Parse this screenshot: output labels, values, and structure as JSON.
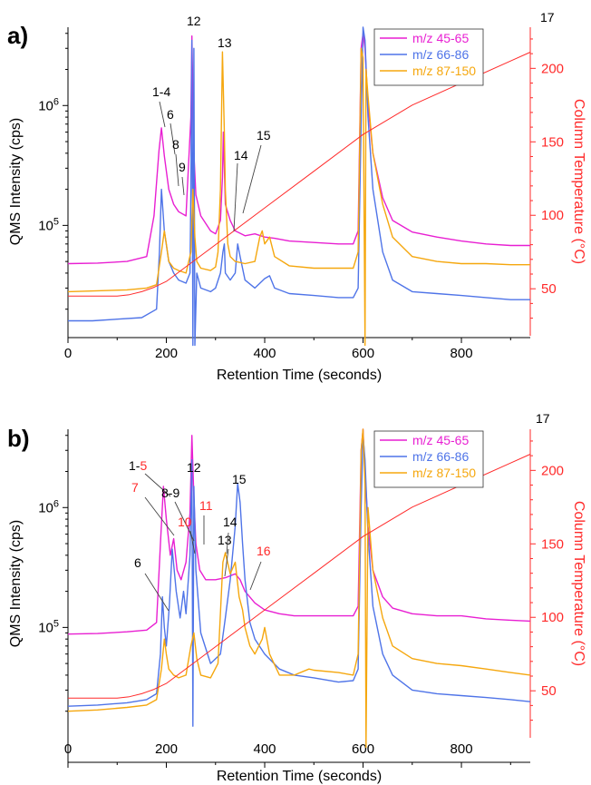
{
  "colors": {
    "magenta": "#e81fd2",
    "blue": "#4f74e8",
    "orange": "#f5a70e",
    "temperature": "#ff2a2a",
    "axis": "#000000",
    "red_label": "#ff2a2a"
  },
  "chart_data": [
    {
      "panel_label": "a)",
      "type": "line",
      "xlabel": "Retention Time (seconds)",
      "ylabel": "QMS Intensity (cps)",
      "y2label": "Column Temperature (°C)",
      "xlim": [
        0,
        940
      ],
      "ylim": [
        12000,
        4500000
      ],
      "yscale": "log",
      "y2lim": [
        18,
        228
      ],
      "xticks": [
        0,
        200,
        400,
        600,
        800
      ],
      "yticks": [
        {
          "value": 100000,
          "label": "10^5"
        },
        {
          "value": 1000000,
          "label": "10^6"
        }
      ],
      "y2ticks": [
        50,
        100,
        150,
        200
      ],
      "legend_position": "top-right",
      "series": [
        {
          "name": "m/z 45-65",
          "color_key": "magenta",
          "x": [
            0,
            60,
            120,
            160,
            175,
            185,
            190,
            196,
            205,
            215,
            225,
            240,
            250,
            252,
            254,
            256,
            260,
            270,
            290,
            300,
            310,
            314,
            316,
            318,
            320,
            330,
            340,
            360,
            380,
            400,
            420,
            450,
            500,
            550,
            580,
            590,
            596,
            600,
            604,
            610,
            620,
            640,
            660,
            700,
            750,
            800,
            850,
            900,
            940
          ],
          "y": [
            48000,
            48500,
            50000,
            55000,
            120000,
            420000,
            650000,
            380000,
            200000,
            150000,
            130000,
            120000,
            800000,
            3800000,
            1200000,
            400000,
            180000,
            120000,
            90000,
            85000,
            110000,
            250000,
            600000,
            300000,
            150000,
            110000,
            90000,
            82000,
            85000,
            80000,
            78000,
            74000,
            72000,
            70000,
            70000,
            90000,
            3000000,
            4000000,
            3000000,
            1000000,
            400000,
            170000,
            110000,
            88000,
            80000,
            74000,
            70000,
            68000,
            68000
          ]
        },
        {
          "name": "m/z 66-86",
          "color_key": "blue",
          "x": [
            0,
            50,
            100,
            150,
            180,
            186,
            190,
            196,
            205,
            210,
            215,
            225,
            240,
            248,
            250,
            252,
            254,
            256,
            258,
            262,
            270,
            290,
            300,
            310,
            315,
            318,
            320,
            330,
            340,
            345,
            350,
            360,
            380,
            400,
            410,
            420,
            450,
            500,
            550,
            580,
            590,
            596,
            600,
            604,
            610,
            620,
            640,
            660,
            700,
            750,
            800,
            850,
            900,
            940
          ],
          "y": [
            16000,
            16000,
            16500,
            17000,
            20000,
            60000,
            200000,
            90000,
            50000,
            45000,
            40000,
            35000,
            33000,
            40000,
            200000,
            3500000,
            10000,
            3000000,
            10000,
            40000,
            30000,
            28000,
            30000,
            40000,
            60000,
            70000,
            40000,
            35000,
            40000,
            70000,
            55000,
            35000,
            30000,
            36000,
            38000,
            30000,
            27000,
            26000,
            25000,
            25000,
            30000,
            700000,
            4500000,
            3500000,
            800000,
            200000,
            60000,
            35000,
            28000,
            27000,
            26000,
            25000,
            24000,
            24000
          ]
        },
        {
          "name": "m/z 87-150",
          "color_key": "orange",
          "x": [
            0,
            60,
            120,
            160,
            180,
            190,
            196,
            200,
            205,
            215,
            225,
            240,
            250,
            254,
            258,
            262,
            270,
            290,
            300,
            305,
            310,
            314,
            318,
            320,
            325,
            330,
            340,
            360,
            380,
            390,
            395,
            400,
            410,
            420,
            450,
            500,
            550,
            580,
            590,
            596,
            600,
            604,
            606,
            610,
            620,
            640,
            660,
            700,
            750,
            800,
            850,
            900,
            940
          ],
          "y": [
            28000,
            28500,
            29000,
            30000,
            32000,
            60000,
            90000,
            70000,
            50000,
            44000,
            42000,
            40000,
            60000,
            200000,
            80000,
            50000,
            44000,
            42000,
            45000,
            60000,
            200000,
            2800000,
            600000,
            200000,
            70000,
            55000,
            50000,
            48000,
            50000,
            80000,
            90000,
            70000,
            80000,
            55000,
            46000,
            44000,
            44000,
            44000,
            60000,
            3000000,
            2500000,
            10000,
            2000000,
            1200000,
            400000,
            150000,
            80000,
            55000,
            50000,
            48000,
            48000,
            47000,
            47000
          ]
        },
        {
          "name": "Column Temperature",
          "axis": "right",
          "color_key": "temperature",
          "x": [
            0,
            100,
            125,
            150,
            175,
            200,
            300,
            400,
            500,
            600,
            700,
            800,
            900,
            940
          ],
          "y": [
            45,
            45,
            46,
            48,
            51,
            55,
            80,
            105,
            130,
            155,
            175,
            190,
            205,
            211
          ]
        }
      ],
      "annotations": [
        {
          "text": "1-4",
          "color_key": "axis"
        },
        {
          "text": "6",
          "color_key": "axis"
        },
        {
          "text": "8",
          "color_key": "axis"
        },
        {
          "text": "9",
          "color_key": "axis"
        },
        {
          "text": "12",
          "color_key": "axis"
        },
        {
          "text": "13",
          "color_key": "axis"
        },
        {
          "text": "14",
          "color_key": "axis"
        },
        {
          "text": "15",
          "color_key": "axis"
        },
        {
          "text": "17",
          "color_key": "axis"
        }
      ]
    },
    {
      "panel_label": "b)",
      "type": "line",
      "xlabel": "Retention Time (seconds)",
      "ylabel": "QMS Intensity (cps)",
      "y2label": "Column Temperature (°C)",
      "xlim": [
        0,
        940
      ],
      "ylim": [
        12000,
        4500000
      ],
      "yscale": "log",
      "y2lim": [
        18,
        228
      ],
      "xticks": [
        0,
        200,
        400,
        600,
        800
      ],
      "yticks": [
        {
          "value": 100000,
          "label": "10^5"
        },
        {
          "value": 1000000,
          "label": "10^6"
        }
      ],
      "y2ticks": [
        50,
        100,
        150,
        200
      ],
      "legend_position": "top-right",
      "series": [
        {
          "name": "m/z 45-65",
          "color_key": "magenta",
          "x": [
            0,
            60,
            120,
            160,
            180,
            188,
            194,
            200,
            208,
            215,
            222,
            230,
            240,
            248,
            252,
            256,
            260,
            268,
            280,
            300,
            320,
            340,
            350,
            360,
            380,
            400,
            430,
            460,
            500,
            550,
            580,
            590,
            596,
            600,
            604,
            610,
            620,
            640,
            660,
            700,
            750,
            800,
            850,
            900,
            940
          ],
          "y": [
            88000,
            89000,
            92000,
            95000,
            110000,
            500000,
            1500000,
            800000,
            400000,
            550000,
            300000,
            250000,
            350000,
            900000,
            4000000,
            1200000,
            500000,
            300000,
            250000,
            250000,
            260000,
            280000,
            250000,
            200000,
            160000,
            140000,
            130000,
            125000,
            125000,
            125000,
            125000,
            150000,
            3000000,
            4500000,
            2000000,
            700000,
            300000,
            180000,
            145000,
            130000,
            125000,
            125000,
            118000,
            115000,
            113000
          ]
        },
        {
          "name": "m/z 66-86",
          "color_key": "blue",
          "x": [
            0,
            60,
            120,
            160,
            180,
            188,
            192,
            196,
            200,
            206,
            212,
            220,
            228,
            235,
            240,
            248,
            252,
            254,
            256,
            260,
            270,
            290,
            310,
            320,
            330,
            340,
            345,
            350,
            355,
            360,
            370,
            380,
            400,
            430,
            460,
            500,
            550,
            580,
            590,
            596,
            600,
            604,
            610,
            620,
            640,
            660,
            700,
            750,
            800,
            850,
            900,
            940
          ],
          "y": [
            22000,
            22500,
            23500,
            25000,
            28000,
            60000,
            180000,
            100000,
            70000,
            150000,
            450000,
            200000,
            120000,
            200000,
            130000,
            400000,
            2500000,
            15000,
            1500000,
            300000,
            90000,
            50000,
            60000,
            120000,
            250000,
            700000,
            1600000,
            1100000,
            500000,
            250000,
            110000,
            80000,
            60000,
            45000,
            40000,
            38000,
            35000,
            36000,
            45000,
            1000000,
            4000000,
            2500000,
            600000,
            150000,
            60000,
            40000,
            30000,
            28000,
            27000,
            26000,
            25000,
            24000
          ]
        },
        {
          "name": "m/z 87-150",
          "color_key": "orange",
          "x": [
            0,
            60,
            120,
            160,
            180,
            190,
            196,
            200,
            205,
            215,
            225,
            240,
            250,
            256,
            262,
            270,
            290,
            305,
            315,
            320,
            330,
            340,
            348,
            355,
            360,
            370,
            380,
            395,
            400,
            410,
            430,
            460,
            490,
            500,
            550,
            580,
            590,
            596,
            600,
            604,
            606,
            610,
            620,
            640,
            660,
            700,
            750,
            800,
            850,
            900,
            940
          ],
          "y": [
            20000,
            20500,
            21500,
            22500,
            25000,
            45000,
            80000,
            60000,
            45000,
            40000,
            38000,
            40000,
            70000,
            90000,
            55000,
            40000,
            38000,
            50000,
            350000,
            420000,
            280000,
            350000,
            180000,
            140000,
            100000,
            70000,
            60000,
            80000,
            100000,
            60000,
            40000,
            40000,
            45000,
            44000,
            42000,
            40000,
            60000,
            3000000,
            4500000,
            1500000,
            10000,
            1000000,
            300000,
            120000,
            70000,
            55000,
            50000,
            48000,
            45000,
            42000,
            40000
          ]
        },
        {
          "name": "Column Temperature",
          "axis": "right",
          "color_key": "temperature",
          "x": [
            0,
            100,
            125,
            150,
            175,
            200,
            300,
            400,
            500,
            600,
            700,
            800,
            900,
            940
          ],
          "y": [
            45,
            45,
            46,
            48,
            51,
            55,
            80,
            105,
            130,
            155,
            175,
            190,
            205,
            211
          ]
        }
      ],
      "annotations": [
        {
          "text": "1-5",
          "parts": [
            {
              "text": "1-",
              "color_key": "axis"
            },
            {
              "text": "5",
              "color_key": "red_label"
            }
          ]
        },
        {
          "text": "7",
          "color_key": "red_label"
        },
        {
          "text": "8-9",
          "color_key": "axis"
        },
        {
          "text": "10",
          "color_key": "red_label"
        },
        {
          "text": "11",
          "color_key": "red_label"
        },
        {
          "text": "6",
          "color_key": "axis"
        },
        {
          "text": "12",
          "color_key": "axis"
        },
        {
          "text": "13",
          "color_key": "axis"
        },
        {
          "text": "14",
          "color_key": "axis"
        },
        {
          "text": "15",
          "color_key": "axis"
        },
        {
          "text": "16",
          "color_key": "red_label"
        },
        {
          "text": "17",
          "color_key": "axis"
        }
      ]
    }
  ]
}
